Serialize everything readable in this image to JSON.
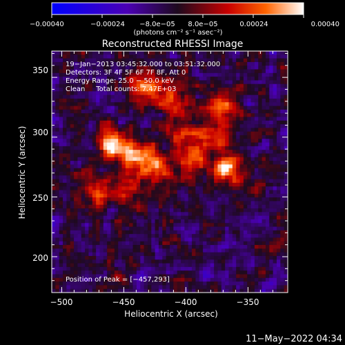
{
  "chart_data": {
    "type": "heatmap",
    "title": "Reconstructed RHESSI Image",
    "xlabel": "Heliocentric X (arcsec)",
    "ylabel": "Heliocentric Y (arcsec)",
    "xlim": [
      -508,
      -318
    ],
    "ylim": [
      170,
      372
    ],
    "x_ticks": [
      -500,
      -450,
      -400,
      -350
    ],
    "y_ticks": [
      200,
      250,
      300,
      350
    ],
    "x_tick_labels": [
      "−500",
      "−450",
      "−400",
      "−350"
    ],
    "y_tick_labels": [
      "200",
      "250",
      "300",
      "350"
    ],
    "colorbar": {
      "range": [
        -0.0004,
        0.0004
      ],
      "tick_labels": [
        "−0.00040",
        "−0.00024",
        "−8.0e−05",
        "8.0e−05",
        "0.00024",
        "0.00040"
      ],
      "unit_label": "(photons cm⁻² s⁻¹ asec⁻²)"
    },
    "annotations": [
      "19−Jan−2013 03:45:32.000 to 03:51:32.000",
      "Detectors: 3F 4F 5F 6F 7F 8F, Att 0",
      "Energy Range: 25.0 − 50.0 keV",
      "Clean     Total counts: 7.47E+03"
    ],
    "peak_label": "Position of Peak = [−457,293]",
    "peak": [
      -457,
      293
    ],
    "sources": [
      {
        "x": -458,
        "y": 295,
        "value": 0.0004
      },
      {
        "x": -440,
        "y": 282,
        "value": 0.00034
      },
      {
        "x": -423,
        "y": 275,
        "value": 0.00032
      },
      {
        "x": -430,
        "y": 342,
        "value": 0.00032
      },
      {
        "x": -410,
        "y": 330,
        "value": 0.00028
      },
      {
        "x": -372,
        "y": 325,
        "value": 0.00034
      },
      {
        "x": -378,
        "y": 300,
        "value": 0.00026
      },
      {
        "x": -368,
        "y": 273,
        "value": 0.00036
      },
      {
        "x": -395,
        "y": 280,
        "value": 0.00024
      },
      {
        "x": -402,
        "y": 300,
        "value": 0.00022
      },
      {
        "x": -445,
        "y": 260,
        "value": 0.0002
      },
      {
        "x": -470,
        "y": 255,
        "value": 0.00016
      }
    ],
    "colormap_stops": [
      {
        "v": 0.0,
        "color": "#0000ff"
      },
      {
        "v": 0.3,
        "color": "#4b00b4"
      },
      {
        "v": 0.5,
        "color": "#1e0a1e"
      },
      {
        "v": 0.7,
        "color": "#c80000"
      },
      {
        "v": 0.85,
        "color": "#ff6400"
      },
      {
        "v": 1.0,
        "color": "#ffffff"
      }
    ]
  },
  "footer_date": "11−May−2022 04:34"
}
